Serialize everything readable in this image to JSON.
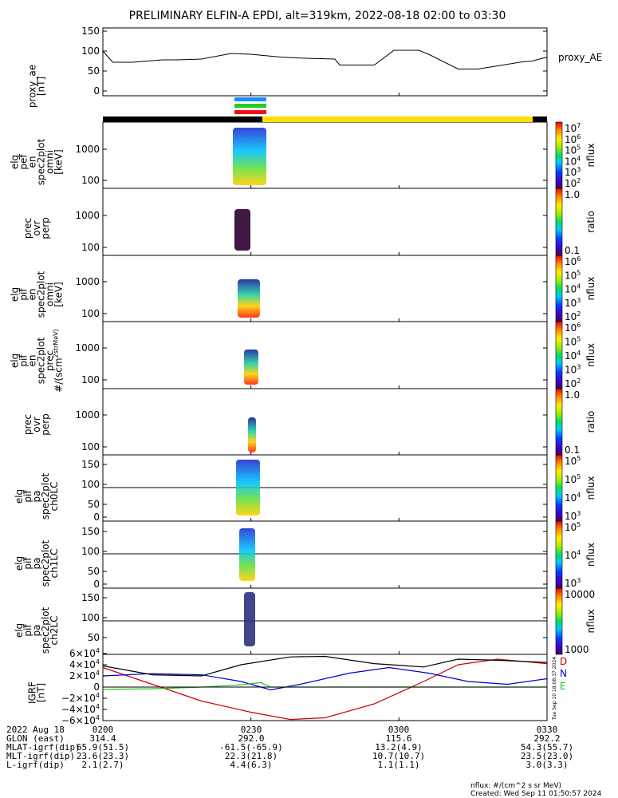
{
  "title": "PRELIMINARY ELFIN-A EPDI, alt=319km, 2022-08-18 02:00 to 03:30",
  "colors": {
    "ae_line": "#000000",
    "bar_black": "#000000",
    "bar_yellow": "#ffe000",
    "seg_blue": "#1a8cff",
    "seg_green": "#22cc22",
    "seg_red": "#ee1111",
    "igrf_d": "#cc0000",
    "igrf_n": "#0000cc",
    "igrf_e": "#22bb22"
  },
  "chart_data": [
    {
      "type": "line",
      "ylabel": "proxy_ae [nT]",
      "legend": "proxy_AE",
      "ylim": [
        0,
        150
      ],
      "yticks": [
        "150",
        "100",
        "50",
        "0"
      ],
      "x": [
        0,
        2,
        6,
        12,
        15,
        20,
        26,
        30,
        36,
        39,
        41,
        47,
        48,
        55,
        59,
        64,
        66,
        72,
        76,
        85,
        87,
        90
      ],
      "values": [
        100,
        72,
        72,
        78,
        78,
        80,
        94,
        92,
        85,
        83,
        82,
        80,
        65,
        65,
        102,
        102,
        92,
        55,
        55,
        73,
        75,
        85
      ]
    },
    {
      "type": "heatmap",
      "ylabel": "elg pef en spec2plot omni [keV]",
      "yticks": [
        "1000",
        "100"
      ],
      "zlabel": "nflux",
      "ztick_labels": [
        "10^7",
        "10^6",
        "10^5",
        "10^4",
        "10^3",
        "10^2"
      ]
    },
    {
      "type": "heatmap",
      "ylabel": "prec ovr perp",
      "yticks": [
        "1000",
        "100"
      ],
      "zlabel": "ratio",
      "ztick_labels": [
        "1.0",
        "0.1"
      ]
    },
    {
      "type": "heatmap",
      "ylabel": "elg pif en spec2plot omni [keV]",
      "yticks": [
        "1000",
        "100"
      ],
      "zlabel": "nflux",
      "ztick_labels": [
        "10^6",
        "10^5",
        "10^4",
        "10^3",
        "10^2"
      ]
    },
    {
      "type": "heatmap",
      "ylabel": "elg pif en spec2plot prec #/(scm^2strMeV)",
      "yticks": [
        "1000",
        "100"
      ],
      "zlabel": "nflux",
      "ztick_labels": [
        "10^6",
        "10^5",
        "10^4",
        "10^3",
        "10^2"
      ]
    },
    {
      "type": "heatmap",
      "ylabel": "prec ovr perp",
      "yticks": [
        "1000",
        "100"
      ],
      "zlabel": "ratio",
      "ztick_labels": [
        "1.0",
        "0.1"
      ]
    },
    {
      "type": "heatmap",
      "ylabel": "elg pif pa spec2plot ch0LC",
      "yticks": [
        "150",
        "100",
        "50",
        "0"
      ],
      "zlabel": "nflux",
      "ztick_labels": [
        "10^5",
        "10^5",
        "10^4",
        "10^3"
      ]
    },
    {
      "type": "heatmap",
      "ylabel": "elg pif pa spec2plot ch1LC",
      "yticks": [
        "150",
        "100",
        "50",
        "0"
      ],
      "zlabel": "nflux",
      "ztick_labels": [
        "10^5",
        "10^4",
        "10^3"
      ]
    },
    {
      "type": "heatmap",
      "ylabel": "elg pif pa spec2plot ch2LC",
      "yticks": [
        "150",
        "100",
        "50"
      ],
      "zlabel": "nflux",
      "ztick_labels": [
        "10000",
        "1000"
      ]
    },
    {
      "type": "line",
      "ylabel": "IGRF [nT]",
      "ylim": [
        -60000,
        60000
      ],
      "yticks": [
        "6×10^4",
        "4×10^4",
        "2×10^4",
        "0",
        "−2×10^4",
        "−4×10^4",
        "−6×10^4"
      ],
      "series": [
        {
          "name": "D",
          "x": [
            0,
            10,
            20,
            30,
            38,
            45,
            55,
            65,
            72,
            80,
            90
          ],
          "values": [
            35000,
            5000,
            -25000,
            -45000,
            -58000,
            -55000,
            -30000,
            10000,
            40000,
            50000,
            42000
          ]
        },
        {
          "name": "N",
          "x": [
            0,
            10,
            20,
            28,
            34,
            40,
            50,
            58,
            66,
            74,
            82,
            90
          ],
          "values": [
            20000,
            24000,
            22000,
            10000,
            -5000,
            5000,
            25000,
            35000,
            25000,
            10000,
            5000,
            15000
          ]
        },
        {
          "name": "E",
          "x": [
            0,
            10,
            20,
            28,
            32,
            34,
            40,
            50,
            60,
            70,
            80,
            90
          ],
          "values": [
            -4000,
            -3000,
            0,
            4000,
            8000,
            0,
            0,
            0,
            0,
            0,
            0,
            0
          ]
        },
        {
          "name": "",
          "x": [
            0,
            10,
            20,
            28,
            38,
            45,
            55,
            65,
            72,
            80,
            90
          ],
          "values": [
            38000,
            22000,
            20000,
            40000,
            54000,
            55000,
            42000,
            36000,
            50000,
            48000,
            44000
          ]
        }
      ]
    }
  ],
  "time_ticks": [
    "0200",
    "0230",
    "0300",
    "0330"
  ],
  "stamp": "Tue Sep 10 18:08:37 2024",
  "ephem": {
    "rows": [
      {
        "label": "2022 Aug 18",
        "values": [
          "0200",
          "0230",
          "0300",
          "0330"
        ]
      },
      {
        "label": "GLON (east)",
        "values": [
          "314.4",
          "292.0",
          "115.6",
          "292.2"
        ]
      },
      {
        "label": "MLAT-igrf(dip)",
        "values": [
          "65.9(51.5)",
          "-61.5(-65.9)",
          "13.2(4.9)",
          "54.3(55.7)"
        ]
      },
      {
        "label": "MLT-igrf(dip)",
        "values": [
          "23.6(23.3)",
          "22.3(21.8)",
          "10.7(10.7)",
          "23.5(23.0)"
        ]
      },
      {
        "label": "L-igrf(dip)",
        "values": [
          "2.1(2.7)",
          "4.4(6.3)",
          "1.1(1.1)",
          "3.0(3.3)"
        ]
      }
    ]
  },
  "footer": {
    "units": "nflux: #/(cm^2 s sr MeV)",
    "created": "Created: Wed Sep 11 01:50:57 2024"
  }
}
